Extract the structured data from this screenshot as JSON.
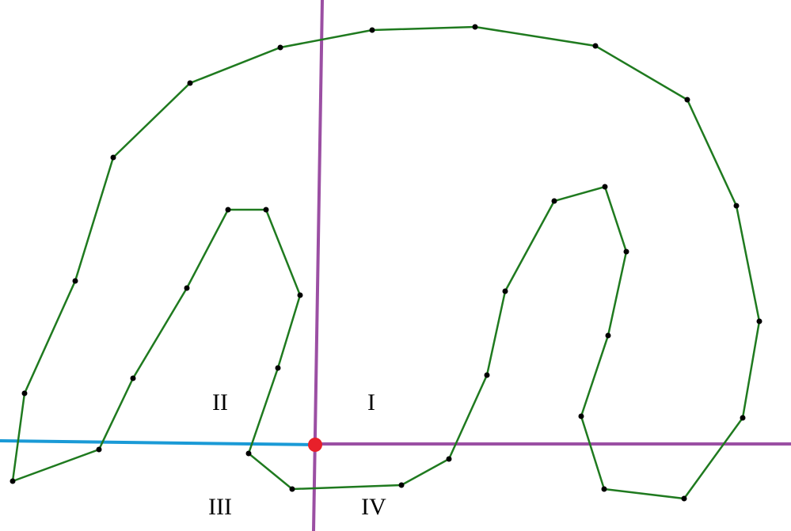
{
  "colors": {
    "background": "#ffffff",
    "polygon_stroke": "#1f7a1f",
    "vertex": "#000000",
    "axis_vertical": "#9b4fa3",
    "axis_horizontal_right": "#9b4fa3",
    "ray_left": "#1a9ad6",
    "origin_point": "#e8202a"
  },
  "quadrants": {
    "q1": "I",
    "q2": "II",
    "q3": "III",
    "q4": "IV"
  }
}
